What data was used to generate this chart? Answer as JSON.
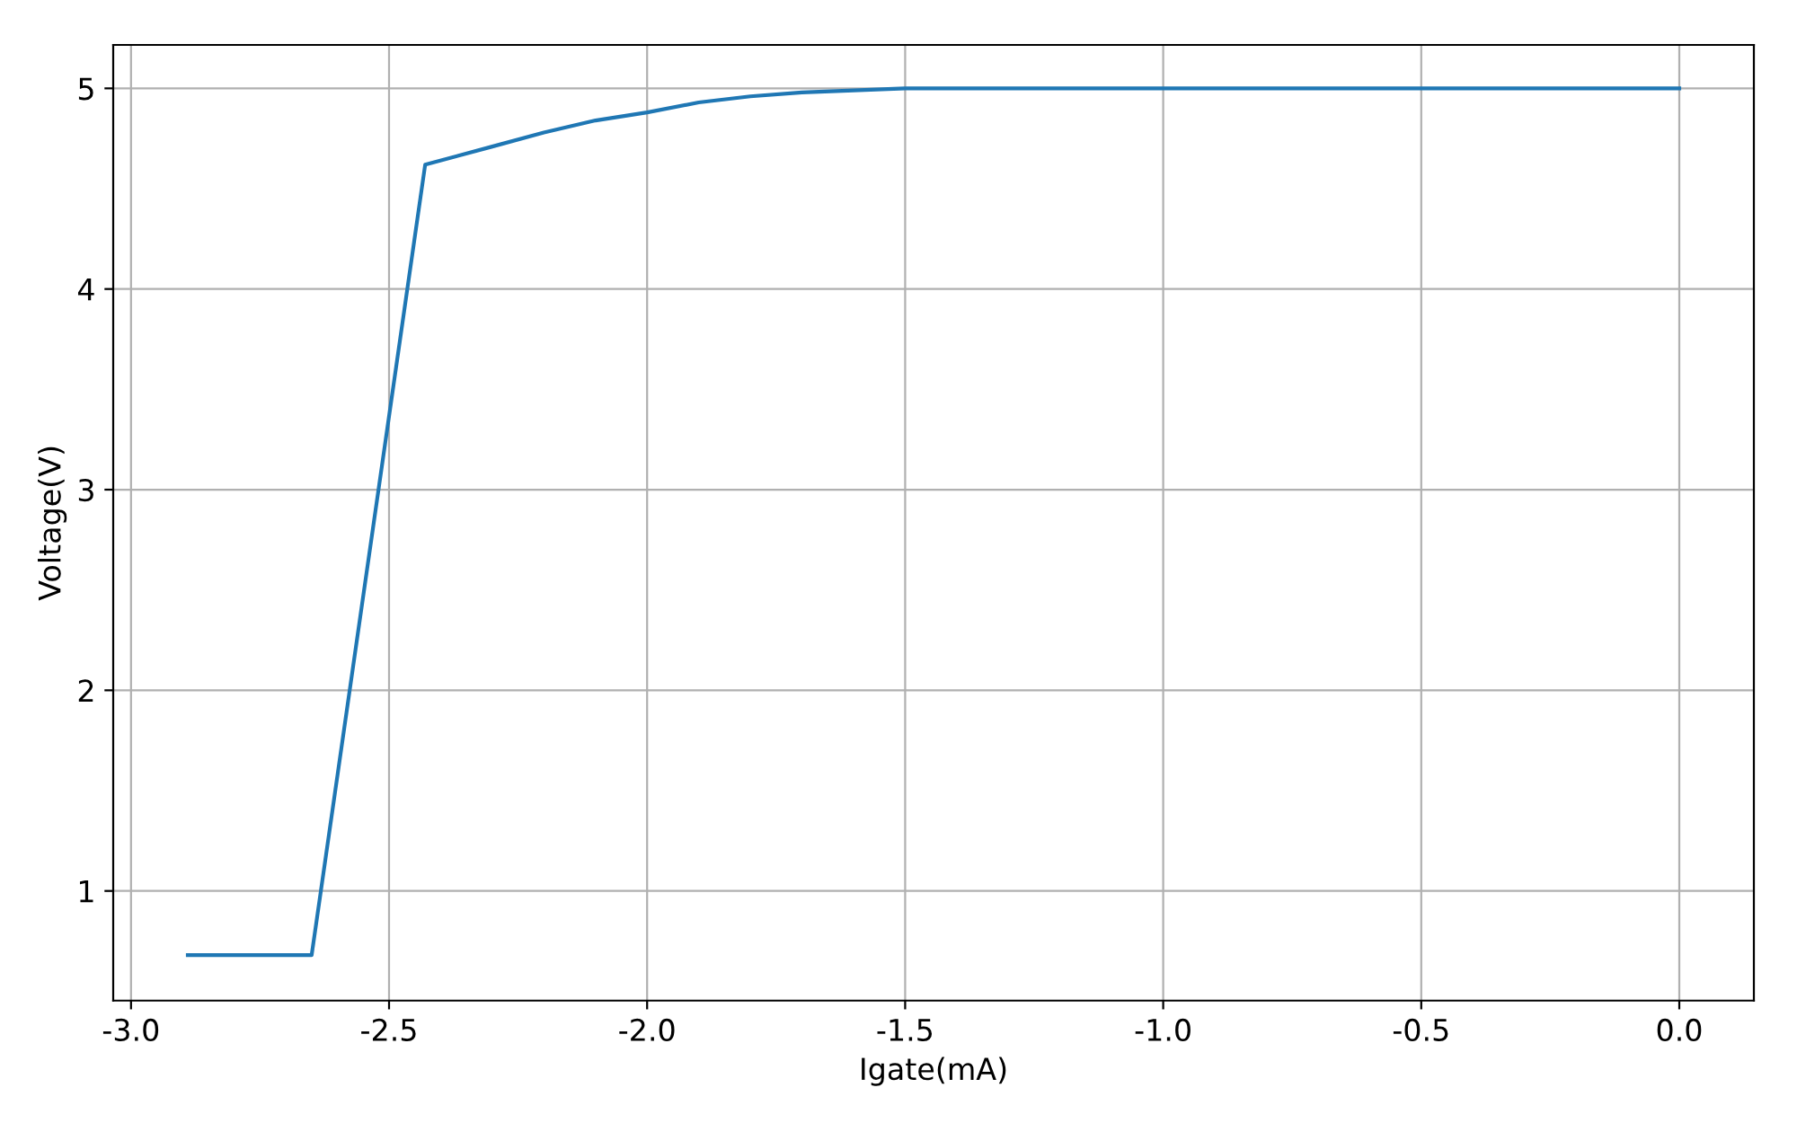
{
  "chart_data": {
    "type": "line",
    "xlabel": "Igate(mA)",
    "ylabel": "Voltage(V)",
    "series": [
      {
        "color": "#1f77b4",
        "x": [
          -2.89,
          -2.65,
          -2.43,
          -2.3,
          -2.2,
          -2.1,
          -2.0,
          -1.9,
          -1.8,
          -1.7,
          -1.6,
          -1.5,
          -1.0,
          -0.5,
          0.0
        ],
        "values": [
          0.68,
          0.68,
          4.62,
          4.71,
          4.78,
          4.84,
          4.88,
          4.93,
          4.96,
          4.98,
          4.99,
          5.0,
          5.0,
          5.0,
          5.0
        ]
      }
    ],
    "xlim": [
      -3.0345,
      0.1445
    ],
    "ylim": [
      0.4535,
      5.2165
    ],
    "xticks": [
      {
        "value": -3.0,
        "label": "-3.0"
      },
      {
        "value": -2.5,
        "label": "-2.5"
      },
      {
        "value": -2.0,
        "label": "-2.0"
      },
      {
        "value": -1.5,
        "label": "-1.5"
      },
      {
        "value": -1.0,
        "label": "-1.0"
      },
      {
        "value": -0.5,
        "label": "-0.5"
      },
      {
        "value": 0.0,
        "label": "0.0"
      }
    ],
    "yticks": [
      1,
      2,
      3,
      4,
      5
    ],
    "grid": true,
    "marker": "none",
    "line_style": "solid"
  }
}
